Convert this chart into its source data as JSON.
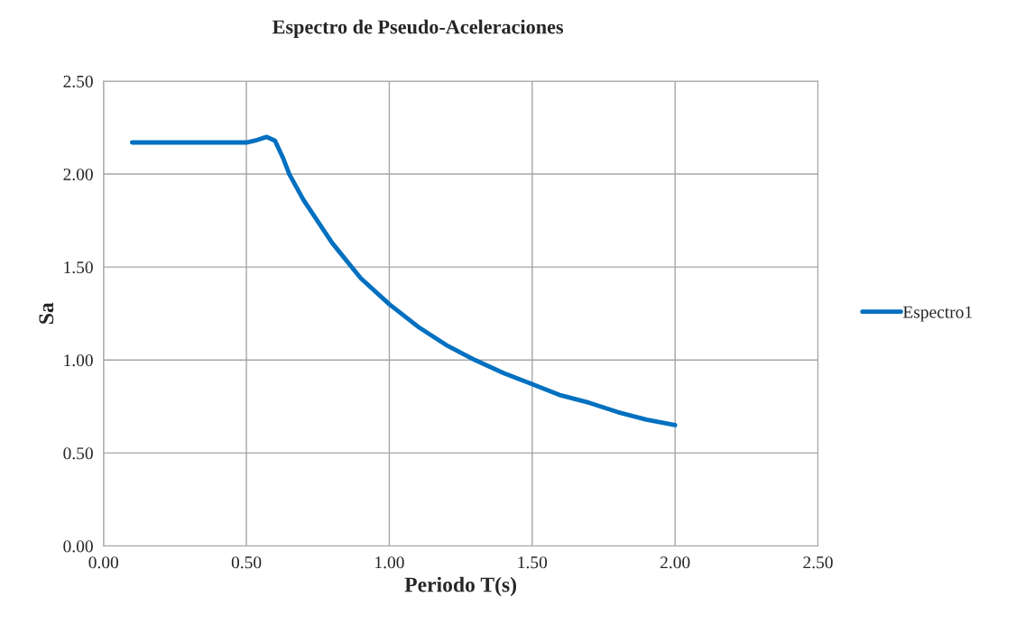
{
  "chart_data": {
    "type": "line",
    "title": "Espectro de Pseudo-Aceleraciones",
    "xlabel": "Periodo T(s)",
    "ylabel": "Sa",
    "x": [
      0.1,
      0.2,
      0.3,
      0.4,
      0.5,
      0.53,
      0.57,
      0.6,
      0.63,
      0.65,
      0.7,
      0.8,
      0.9,
      1.0,
      1.1,
      1.2,
      1.3,
      1.4,
      1.5,
      1.6,
      1.7,
      1.8,
      1.9,
      2.0
    ],
    "series": [
      {
        "name": "Espectro1",
        "color": "#0070c0",
        "values": [
          2.17,
          2.17,
          2.17,
          2.17,
          2.17,
          2.18,
          2.2,
          2.18,
          2.08,
          2.0,
          1.86,
          1.63,
          1.44,
          1.3,
          1.18,
          1.08,
          1.0,
          0.93,
          0.87,
          0.81,
          0.77,
          0.72,
          0.68,
          0.65
        ]
      }
    ],
    "xlim": [
      0,
      2.5
    ],
    "xticks": [
      {
        "value": 0,
        "label": "0.00"
      },
      {
        "value": 0.5,
        "label": "0.50"
      },
      {
        "value": 1,
        "label": "1.00"
      },
      {
        "value": 1.5,
        "label": "1.50"
      },
      {
        "value": 2,
        "label": "2.00"
      },
      {
        "value": 2.5,
        "label": "2.50"
      }
    ],
    "ylim": [
      0,
      2.5
    ],
    "yticks": [
      {
        "value": 0,
        "label": "0.00"
      },
      {
        "value": 0.5,
        "label": "0.50"
      },
      {
        "value": 1,
        "label": "1.00"
      },
      {
        "value": 1.5,
        "label": "1.50"
      },
      {
        "value": 2,
        "label": "2.00"
      },
      {
        "value": 2.5,
        "label": "2.50"
      }
    ],
    "grid": true,
    "legend": "right",
    "marker": "none",
    "line_style": "solid"
  }
}
